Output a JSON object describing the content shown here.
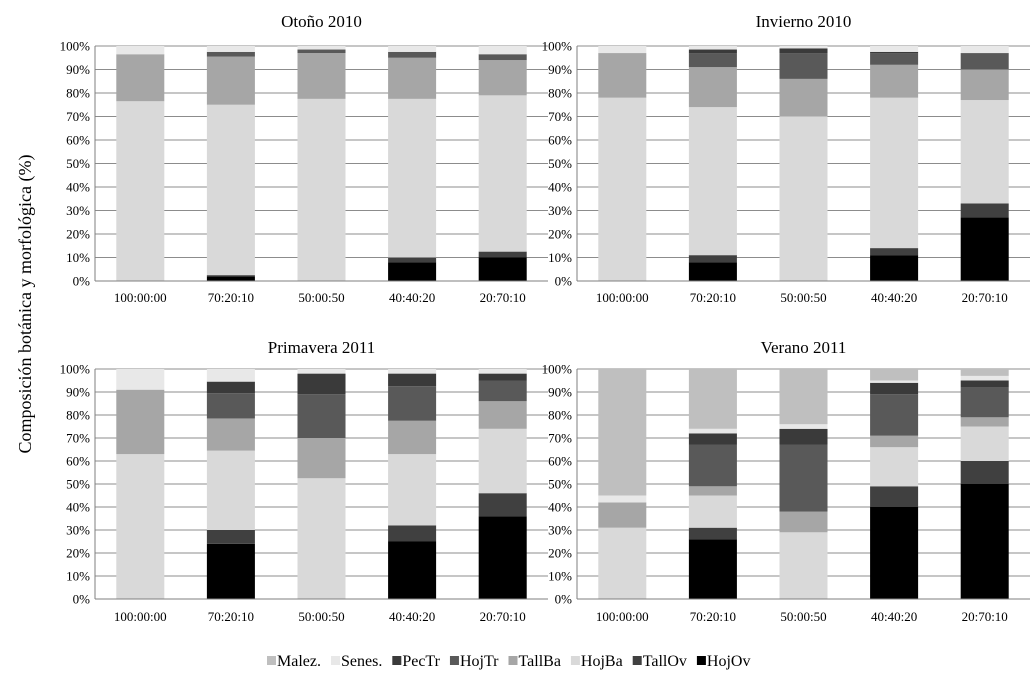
{
  "figure": {
    "ylabel": "Composición botánica y morfológica (%)"
  },
  "legend": [
    {
      "name": "Malez.",
      "color": "#bfbfbf"
    },
    {
      "name": "Senes.",
      "color": "#e8e8e8"
    },
    {
      "name": "PecTr",
      "color": "#3a3a3a"
    },
    {
      "name": "HojTr",
      "color": "#595959"
    },
    {
      "name": "TallBa",
      "color": "#a6a6a6"
    },
    {
      "name": "HojBa",
      "color": "#d9d9d9"
    },
    {
      "name": "TallOv",
      "color": "#404040"
    },
    {
      "name": "HojOv",
      "color": "#000000"
    }
  ],
  "chart_data": [
    {
      "type": "bar",
      "stacked": true,
      "title": "Otoño 2010",
      "categories": [
        "100:00:00",
        "70:20:10",
        "50:00:50",
        "40:40:20",
        "20:70:10"
      ],
      "yticks": [
        "0%",
        "10%",
        "20%",
        "30%",
        "40%",
        "50%",
        "60%",
        "70%",
        "80%",
        "90%",
        "100%"
      ],
      "ylim": [
        0,
        100
      ],
      "grid": true,
      "series": [
        {
          "name": "HojOv",
          "values": [
            0,
            2,
            0,
            8,
            10
          ]
        },
        {
          "name": "TallOv",
          "values": [
            0,
            0.5,
            0,
            2,
            2.5
          ]
        },
        {
          "name": "HojBa",
          "values": [
            76.5,
            72.5,
            77.5,
            67.5,
            66.5
          ]
        },
        {
          "name": "TallBa",
          "values": [
            20,
            20.5,
            19.5,
            17.5,
            15
          ]
        },
        {
          "name": "HojTr",
          "values": [
            0,
            2,
            1.5,
            2.5,
            2.5
          ]
        },
        {
          "name": "PecTr",
          "values": [
            0,
            0,
            0,
            0,
            0
          ]
        },
        {
          "name": "Senes.",
          "values": [
            3.5,
            2.5,
            1.5,
            2.5,
            3.5
          ]
        },
        {
          "name": "Malez.",
          "values": [
            0,
            0,
            0,
            0,
            0
          ]
        }
      ]
    },
    {
      "type": "bar",
      "stacked": true,
      "title": "Invierno 2010",
      "categories": [
        "100:00:00",
        "70:20:10",
        "50:00:50",
        "40:40:20",
        "20:70:10"
      ],
      "yticks": [
        "0%",
        "10%",
        "20%",
        "30%",
        "40%",
        "50%",
        "60%",
        "70%",
        "80%",
        "90%",
        "100%"
      ],
      "ylim": [
        0,
        100
      ],
      "grid": true,
      "series": [
        {
          "name": "HojOv",
          "values": [
            0,
            8,
            0,
            11,
            27
          ]
        },
        {
          "name": "TallOv",
          "values": [
            0,
            3,
            0,
            3,
            6
          ]
        },
        {
          "name": "HojBa",
          "values": [
            78,
            63,
            70,
            64,
            44
          ]
        },
        {
          "name": "TallBa",
          "values": [
            19,
            17,
            16,
            14,
            13
          ]
        },
        {
          "name": "HojTr",
          "values": [
            0,
            6,
            11,
            5,
            7
          ]
        },
        {
          "name": "PecTr",
          "values": [
            0,
            1.5,
            2,
            0.5,
            0
          ]
        },
        {
          "name": "Senes.",
          "values": [
            3,
            1.5,
            1,
            2.5,
            3
          ]
        },
        {
          "name": "Malez.",
          "values": [
            0,
            0,
            0,
            0,
            0
          ]
        }
      ]
    },
    {
      "type": "bar",
      "stacked": true,
      "title": "Primavera 2011",
      "categories": [
        "100:00:00",
        "70:20:10",
        "50:00:50",
        "40:40:20",
        "20:70:10"
      ],
      "yticks": [
        "0%",
        "10%",
        "20%",
        "30%",
        "40%",
        "50%",
        "60%",
        "70%",
        "80%",
        "90%",
        "100%"
      ],
      "ylim": [
        0,
        100
      ],
      "grid": true,
      "series": [
        {
          "name": "HojOv",
          "values": [
            0,
            24,
            0,
            25,
            36
          ]
        },
        {
          "name": "TallOv",
          "values": [
            0,
            6,
            0,
            7,
            10
          ]
        },
        {
          "name": "HojBa",
          "values": [
            63,
            34.5,
            52.5,
            31,
            28
          ]
        },
        {
          "name": "TallBa",
          "values": [
            28,
            14,
            17.5,
            14.5,
            12
          ]
        },
        {
          "name": "HojTr",
          "values": [
            0,
            11,
            19,
            15,
            9
          ]
        },
        {
          "name": "PecTr",
          "values": [
            0,
            5,
            9,
            5.5,
            3
          ]
        },
        {
          "name": "Senes.",
          "values": [
            9,
            5.5,
            2,
            2,
            2
          ]
        },
        {
          "name": "Malez.",
          "values": [
            0,
            0,
            0,
            0,
            0
          ]
        }
      ]
    },
    {
      "type": "bar",
      "stacked": true,
      "title": "Verano 2011",
      "categories": [
        "100:00:00",
        "70:20:10",
        "50:00:50",
        "40:40:20",
        "20:70:10"
      ],
      "yticks": [
        "0%",
        "10%",
        "20%",
        "30%",
        "40%",
        "50%",
        "60%",
        "70%",
        "80%",
        "90%",
        "100%"
      ],
      "ylim": [
        0,
        100
      ],
      "grid": true,
      "series": [
        {
          "name": "HojOv",
          "values": [
            0,
            26,
            0,
            40,
            50
          ]
        },
        {
          "name": "TallOv",
          "values": [
            0,
            5,
            0,
            9,
            10
          ]
        },
        {
          "name": "HojBa",
          "values": [
            31,
            14,
            29,
            17,
            15
          ]
        },
        {
          "name": "TallBa",
          "values": [
            11,
            4,
            9,
            5,
            4
          ]
        },
        {
          "name": "HojTr",
          "values": [
            0,
            18,
            29,
            18,
            13
          ]
        },
        {
          "name": "PecTr",
          "values": [
            0,
            5,
            7,
            5,
            3
          ]
        },
        {
          "name": "Senes.",
          "values": [
            3,
            2,
            2,
            1,
            2
          ]
        },
        {
          "name": "Malez.",
          "values": [
            55,
            26,
            24,
            5,
            3
          ]
        }
      ]
    }
  ]
}
